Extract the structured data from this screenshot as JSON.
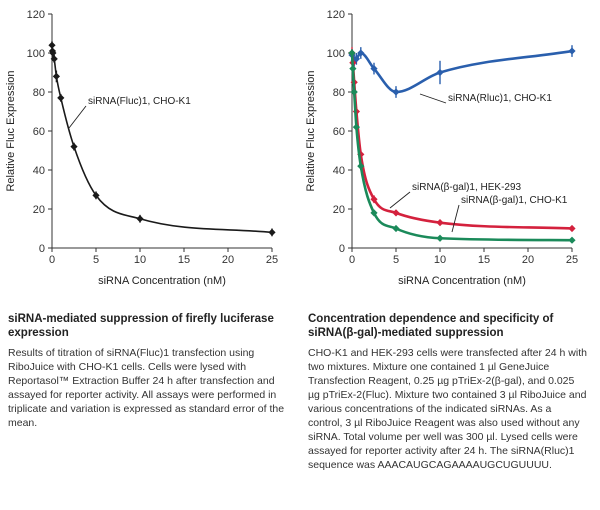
{
  "chart_data": [
    {
      "type": "line",
      "ylabel": "Relative Fluc Expression",
      "xlabel": "siRNA Concentration (nM)",
      "xlim": [
        0,
        25
      ],
      "ylim": [
        0,
        120
      ],
      "xticks": [
        0,
        5,
        10,
        15,
        20,
        25
      ],
      "yticks": [
        0,
        20,
        40,
        60,
        80,
        100,
        120
      ],
      "series": [
        {
          "name": "siRNA(Fluc)1, CHO-K1",
          "color": "#1a1a1a",
          "x": [
            0,
            0.05,
            0.1,
            0.25,
            0.5,
            1,
            2.5,
            5,
            10,
            25
          ],
          "y": [
            104,
            101,
            100,
            97,
            88,
            77,
            52,
            27,
            15,
            8
          ],
          "err": [
            2,
            2,
            2,
            2,
            3,
            2,
            2,
            2,
            2,
            2
          ]
        }
      ],
      "annotations": [
        {
          "text": "siRNA(Fluc)1, CHO-K1",
          "target_series": 0
        }
      ]
    },
    {
      "type": "line",
      "ylabel": "Relative Fluc Expression",
      "xlabel": "siRNA Concentration (nM)",
      "xlim": [
        0,
        25
      ],
      "ylim": [
        0,
        120
      ],
      "xticks": [
        0,
        5,
        10,
        15,
        20,
        25
      ],
      "yticks": [
        0,
        20,
        40,
        60,
        80,
        100,
        120
      ],
      "series": [
        {
          "name": "siRNA(Rluc)1, CHO-K1",
          "color": "#2a5fad",
          "x": [
            0,
            0.25,
            0.5,
            1,
            2.5,
            5,
            10,
            25
          ],
          "y": [
            99,
            96,
            97,
            100,
            92,
            80,
            90,
            101
          ],
          "err": [
            3,
            3,
            3,
            3,
            3,
            3,
            6,
            3
          ]
        },
        {
          "name": "siRNA(β-gal)1, HEK-293",
          "color": "#d4213d",
          "x": [
            0,
            0.1,
            0.25,
            0.5,
            1,
            2.5,
            5,
            10,
            25
          ],
          "y": [
            100,
            95,
            85,
            70,
            48,
            25,
            18,
            13,
            10
          ],
          "err": [
            3,
            2,
            2,
            2,
            2,
            2,
            1,
            1,
            1
          ]
        },
        {
          "name": "siRNA(β-gal)1, CHO-K1",
          "color": "#1b8a5a",
          "x": [
            0,
            0.1,
            0.25,
            0.5,
            1,
            2.5,
            5,
            10,
            25
          ],
          "y": [
            100,
            92,
            80,
            62,
            42,
            18,
            10,
            5,
            4
          ],
          "err": [
            2,
            2,
            2,
            2,
            2,
            1,
            1,
            1,
            1
          ]
        }
      ],
      "annotations": [
        {
          "text": "siRNA(Rluc)1, CHO-K1",
          "target_series": 0
        },
        {
          "text": "siRNA(β-gal)1, HEK-293",
          "target_series": 1
        },
        {
          "text": "siRNA(β-gal)1, CHO-K1",
          "target_series": 2
        }
      ]
    }
  ],
  "captions": {
    "left": {
      "title": "siRNA-mediated suppression of firefly luciferase expression",
      "body": "Results of titration of siRNA(Fluc)1 transfection using RiboJuice with CHO-K1 cells. Cells were lysed with Reportasol™ Extraction Buffer 24 h after transfection and assayed for reporter activity. All assays were performed in triplicate and variation is expressed as standard error of the mean."
    },
    "right": {
      "title": "Concentration dependence and specificity of siRNA(β-gal)-mediated suppression",
      "body": "CHO-K1 and HEK-293 cells were transfected after 24 h with two mixtures. Mixture one contained 1 µl GeneJuice Transfection Reagent, 0.25 µg pTriEx-2(β-gal), and 0.025 µg pTriEx-2(Fluc). Mixture two contained 3 µl RiboJuice and various concentrations of the indicated siRNAs. As a control, 3 µl RiboJuice Reagent was also used without any siRNA. Total volume per well was 300 µl. Lysed cells were assayed for reporter activity after 24 h. The siRNA(Rluc)1 sequence was AAACAUGCAGAAAAUGCUGUUUU."
    }
  }
}
